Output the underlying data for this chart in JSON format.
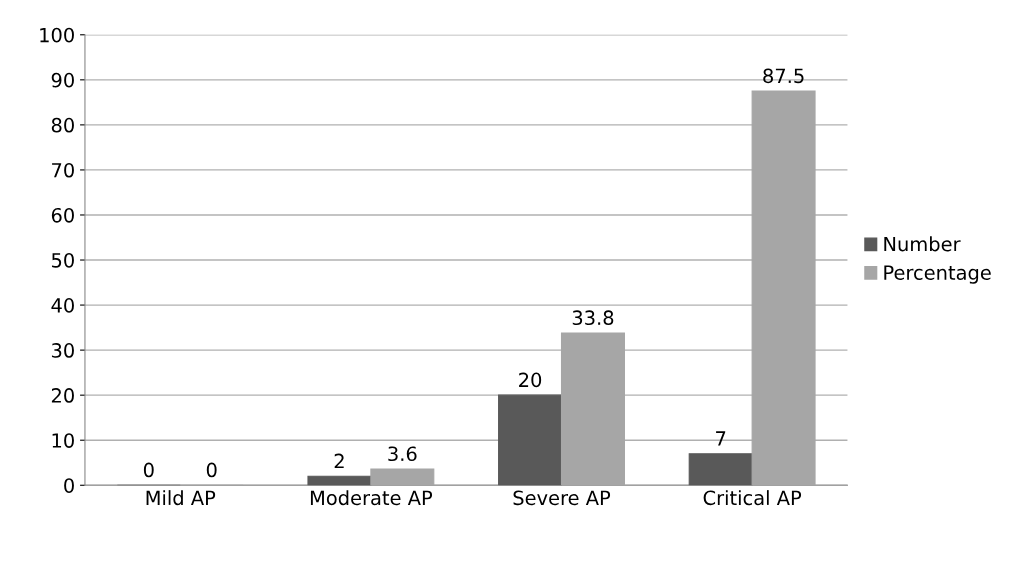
{
  "chart_data": {
    "type": "bar",
    "categories": [
      "Mild AP",
      "Moderate AP",
      "Severe AP",
      "Critical AP"
    ],
    "series": [
      {
        "name": "Number",
        "color": "#595959",
        "values": [
          0,
          2,
          20,
          7
        ]
      },
      {
        "name": "Percentage",
        "color": "#a6a6a6",
        "values": [
          0,
          3.6,
          33.8,
          87.5
        ]
      }
    ],
    "ylim": [
      0,
      100
    ],
    "yticks": [
      0,
      10,
      20,
      30,
      40,
      50,
      60,
      70,
      80,
      90,
      100
    ],
    "grid": "y",
    "legend": "right",
    "data_labels": true
  }
}
